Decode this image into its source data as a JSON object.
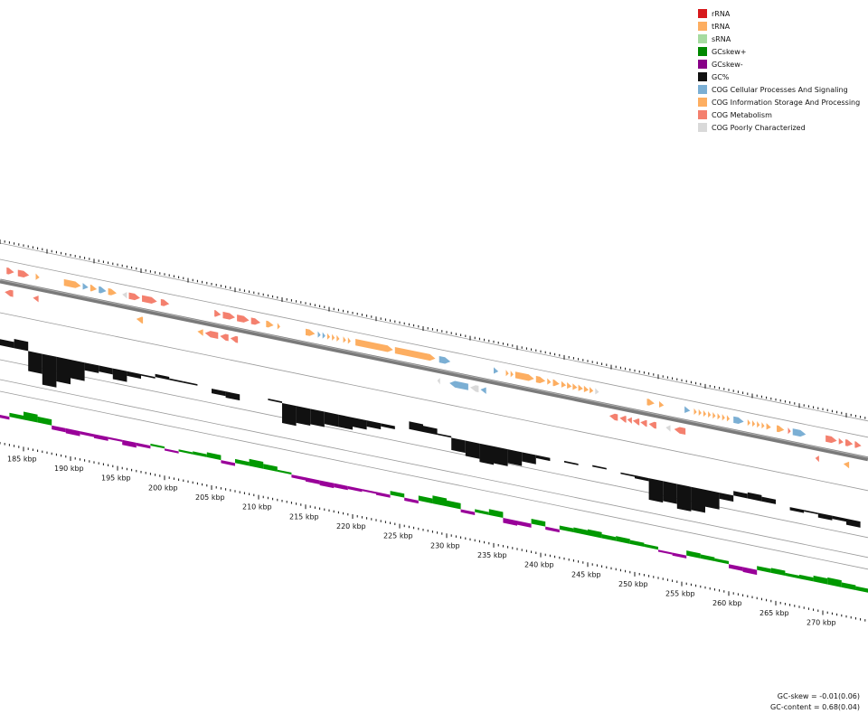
{
  "legend": [
    {
      "label": "rRNA",
      "color": "#d7191c"
    },
    {
      "label": "tRNA",
      "color": "#fdae61"
    },
    {
      "label": "sRNA",
      "color": "#a6dba0"
    },
    {
      "label": "GCskew+",
      "color": "#008800"
    },
    {
      "label": "GCskew-",
      "color": "#880088"
    },
    {
      "label": "GC%",
      "color": "#111111"
    },
    {
      "label": "COG Cellular Processes And Signaling",
      "color": "#7bafd4"
    },
    {
      "label": "COG Information Storage And Processing",
      "color": "#fdae61"
    },
    {
      "label": "COG Metabolism",
      "color": "#f4806e"
    },
    {
      "label": "COG Poorly Characterized",
      "color": "#d9d9d9"
    }
  ],
  "scale": {
    "labels": [
      "185 kbp",
      "190 kbp",
      "195 kbp",
      "200 kbp",
      "205 kbp",
      "210 kbp",
      "215 kbp",
      "220 kbp",
      "225 kbp",
      "230 kbp",
      "235 kbp",
      "240 kbp",
      "245 kbp",
      "250 kbp",
      "255 kbp",
      "260 kbp",
      "265 kbp",
      "270 kbp"
    ],
    "start_kbp": 185,
    "step_kbp": 5
  },
  "stats": {
    "gc_skew": "GC-skew = -0.01(0.06)",
    "gc_content": "GC-content = 0.68(0.04)"
  },
  "colors": {
    "backbone": "#7a7a7a",
    "ring_line": "#9a9a9a",
    "gc": "#111111",
    "skew_pos": "#009900",
    "skew_neg": "#990099",
    "cog_cell": "#7bafd4",
    "cog_info": "#fdae61",
    "cog_meta": "#f4806e",
    "cog_poor": "#d9d9d9"
  },
  "features_outer": [
    {
      "kbp": 183.2,
      "len": 0.8,
      "cat": "cog_meta",
      "dir": 1
    },
    {
      "kbp": 184.4,
      "len": 1.2,
      "cat": "cog_meta",
      "dir": 1
    },
    {
      "kbp": 186.3,
      "len": 0.4,
      "cat": "cog_info",
      "dir": 1
    },
    {
      "kbp": 189.3,
      "len": 1.8,
      "cat": "cog_info",
      "dir": 1
    },
    {
      "kbp": 191.3,
      "len": 0.6,
      "cat": "cog_cell",
      "dir": 1
    },
    {
      "kbp": 192.1,
      "len": 0.7,
      "cat": "cog_info",
      "dir": 1
    },
    {
      "kbp": 193.0,
      "len": 0.8,
      "cat": "cog_cell",
      "dir": 1
    },
    {
      "kbp": 194.0,
      "len": 0.9,
      "cat": "cog_info",
      "dir": 1
    },
    {
      "kbp": 195.5,
      "len": 0.5,
      "cat": "cog_poor",
      "dir": -1
    },
    {
      "kbp": 196.2,
      "len": 1.2,
      "cat": "cog_meta",
      "dir": 1
    },
    {
      "kbp": 197.6,
      "len": 1.6,
      "cat": "cog_meta",
      "dir": 1
    },
    {
      "kbp": 199.6,
      "len": 0.9,
      "cat": "cog_meta",
      "dir": 1
    },
    {
      "kbp": 205.3,
      "len": 0.7,
      "cat": "cog_meta",
      "dir": 1
    },
    {
      "kbp": 206.2,
      "len": 1.3,
      "cat": "cog_meta",
      "dir": 1
    },
    {
      "kbp": 207.7,
      "len": 1.3,
      "cat": "cog_meta",
      "dir": 1
    },
    {
      "kbp": 209.2,
      "len": 1.0,
      "cat": "cog_meta",
      "dir": 1
    },
    {
      "kbp": 210.8,
      "len": 0.8,
      "cat": "cog_info",
      "dir": 1
    },
    {
      "kbp": 212.0,
      "len": 0.3,
      "cat": "cog_info",
      "dir": 1
    },
    {
      "kbp": 215.0,
      "len": 1.0,
      "cat": "cog_info",
      "dir": 1
    },
    {
      "kbp": 216.3,
      "len": 0.3,
      "cat": "cog_cell",
      "dir": 1
    },
    {
      "kbp": 216.8,
      "len": 0.3,
      "cat": "cog_cell",
      "dir": 1
    },
    {
      "kbp": 217.3,
      "len": 0.3,
      "cat": "cog_info",
      "dir": 1
    },
    {
      "kbp": 217.8,
      "len": 0.3,
      "cat": "cog_info",
      "dir": 1
    },
    {
      "kbp": 218.3,
      "len": 0.3,
      "cat": "cog_info",
      "dir": 1
    },
    {
      "kbp": 219.0,
      "len": 0.3,
      "cat": "cog_info",
      "dir": 1
    },
    {
      "kbp": 219.5,
      "len": 0.3,
      "cat": "cog_info",
      "dir": 1
    },
    {
      "kbp": 220.3,
      "len": 4.0,
      "cat": "cog_info",
      "dir": 1
    },
    {
      "kbp": 224.5,
      "len": 4.3,
      "cat": "cog_info",
      "dir": 1
    },
    {
      "kbp": 229.2,
      "len": 1.2,
      "cat": "cog_cell",
      "dir": 1
    },
    {
      "kbp": 235.0,
      "len": 0.5,
      "cat": "cog_cell",
      "dir": 1
    },
    {
      "kbp": 236.3,
      "len": 0.3,
      "cat": "cog_info",
      "dir": 1
    },
    {
      "kbp": 236.8,
      "len": 0.3,
      "cat": "cog_info",
      "dir": 1
    },
    {
      "kbp": 237.3,
      "len": 2.0,
      "cat": "cog_info",
      "dir": 1
    },
    {
      "kbp": 239.5,
      "len": 1.0,
      "cat": "cog_info",
      "dir": 1
    },
    {
      "kbp": 240.7,
      "len": 0.4,
      "cat": "cog_info",
      "dir": 1
    },
    {
      "kbp": 241.3,
      "len": 0.7,
      "cat": "cog_info",
      "dir": 1
    },
    {
      "kbp": 242.2,
      "len": 0.5,
      "cat": "cog_info",
      "dir": 1
    },
    {
      "kbp": 242.8,
      "len": 0.5,
      "cat": "cog_info",
      "dir": 1
    },
    {
      "kbp": 243.4,
      "len": 0.5,
      "cat": "cog_info",
      "dir": 1
    },
    {
      "kbp": 244.0,
      "len": 0.5,
      "cat": "cog_info",
      "dir": 1
    },
    {
      "kbp": 244.6,
      "len": 0.5,
      "cat": "cog_info",
      "dir": 1
    },
    {
      "kbp": 245.2,
      "len": 0.4,
      "cat": "cog_info",
      "dir": 1
    },
    {
      "kbp": 245.8,
      "len": 0.4,
      "cat": "cog_poor",
      "dir": 1
    },
    {
      "kbp": 251.3,
      "len": 0.8,
      "cat": "cog_info",
      "dir": 1
    },
    {
      "kbp": 252.6,
      "len": 0.5,
      "cat": "cog_info",
      "dir": 1
    },
    {
      "kbp": 255.3,
      "len": 0.6,
      "cat": "cog_cell",
      "dir": 1
    },
    {
      "kbp": 256.3,
      "len": 0.3,
      "cat": "cog_info",
      "dir": 1
    },
    {
      "kbp": 256.8,
      "len": 0.3,
      "cat": "cog_info",
      "dir": 1
    },
    {
      "kbp": 257.3,
      "len": 0.3,
      "cat": "cog_info",
      "dir": 1
    },
    {
      "kbp": 257.8,
      "len": 0.3,
      "cat": "cog_info",
      "dir": 1
    },
    {
      "kbp": 258.3,
      "len": 0.3,
      "cat": "cog_info",
      "dir": 1
    },
    {
      "kbp": 258.8,
      "len": 0.3,
      "cat": "cog_info",
      "dir": 1
    },
    {
      "kbp": 259.3,
      "len": 0.3,
      "cat": "cog_info",
      "dir": 1
    },
    {
      "kbp": 259.8,
      "len": 0.3,
      "cat": "cog_info",
      "dir": 1
    },
    {
      "kbp": 260.5,
      "len": 1.1,
      "cat": "cog_cell",
      "dir": 1
    },
    {
      "kbp": 262.0,
      "len": 0.3,
      "cat": "cog_info",
      "dir": 1
    },
    {
      "kbp": 262.5,
      "len": 0.3,
      "cat": "cog_info",
      "dir": 1
    },
    {
      "kbp": 263.0,
      "len": 0.3,
      "cat": "cog_info",
      "dir": 1
    },
    {
      "kbp": 263.5,
      "len": 0.3,
      "cat": "cog_info",
      "dir": 1
    },
    {
      "kbp": 264.0,
      "len": 0.5,
      "cat": "cog_info",
      "dir": 1
    },
    {
      "kbp": 265.1,
      "len": 0.8,
      "cat": "cog_info",
      "dir": 1
    },
    {
      "kbp": 266.3,
      "len": 0.3,
      "cat": "cog_meta",
      "dir": 1
    },
    {
      "kbp": 266.8,
      "len": 1.4,
      "cat": "cog_cell",
      "dir": 1
    },
    {
      "kbp": 270.3,
      "len": 1.2,
      "cat": "cog_meta",
      "dir": 1
    },
    {
      "kbp": 271.7,
      "len": 0.5,
      "cat": "cog_meta",
      "dir": 1
    },
    {
      "kbp": 272.4,
      "len": 0.8,
      "cat": "cog_meta",
      "dir": 1
    },
    {
      "kbp": 273.4,
      "len": 0.7,
      "cat": "cog_meta",
      "dir": 1
    }
  ],
  "features_inner": [
    {
      "kbp": 183.0,
      "len": 0.9,
      "cat": "cog_meta",
      "dir": -1
    },
    {
      "kbp": 186.0,
      "len": 0.6,
      "cat": "cog_meta",
      "dir": -1
    },
    {
      "kbp": 197.0,
      "len": 0.7,
      "cat": "cog_info",
      "dir": -1
    },
    {
      "kbp": 203.5,
      "len": 0.6,
      "cat": "cog_info",
      "dir": -1
    },
    {
      "kbp": 204.3,
      "len": 1.4,
      "cat": "cog_meta",
      "dir": -1
    },
    {
      "kbp": 205.9,
      "len": 0.9,
      "cat": "cog_meta",
      "dir": -1
    },
    {
      "kbp": 207.0,
      "len": 0.8,
      "cat": "cog_meta",
      "dir": -1
    },
    {
      "kbp": 229.0,
      "len": 0.3,
      "cat": "cog_poor",
      "dir": -1
    },
    {
      "kbp": 230.3,
      "len": 2.0,
      "cat": "cog_cell",
      "dir": -1
    },
    {
      "kbp": 232.5,
      "len": 0.9,
      "cat": "cog_poor",
      "dir": -1
    },
    {
      "kbp": 233.6,
      "len": 0.6,
      "cat": "cog_cell",
      "dir": -1
    },
    {
      "kbp": 247.3,
      "len": 0.9,
      "cat": "cog_meta",
      "dir": -1
    },
    {
      "kbp": 248.4,
      "len": 0.7,
      "cat": "cog_meta",
      "dir": -1
    },
    {
      "kbp": 249.2,
      "len": 0.5,
      "cat": "cog_meta",
      "dir": -1
    },
    {
      "kbp": 249.8,
      "len": 0.7,
      "cat": "cog_meta",
      "dir": -1
    },
    {
      "kbp": 250.6,
      "len": 0.7,
      "cat": "cog_meta",
      "dir": -1
    },
    {
      "kbp": 251.5,
      "len": 0.8,
      "cat": "cog_meta",
      "dir": -1
    },
    {
      "kbp": 253.3,
      "len": 0.5,
      "cat": "cog_poor",
      "dir": -1
    },
    {
      "kbp": 254.2,
      "len": 1.2,
      "cat": "cog_meta",
      "dir": -1
    },
    {
      "kbp": 269.2,
      "len": 0.4,
      "cat": "cog_meta",
      "dir": -1
    },
    {
      "kbp": 272.2,
      "len": 0.6,
      "cat": "cog_info",
      "dir": -1
    }
  ],
  "gc_percent": [
    {
      "kbp": 182.0,
      "v": 0.72
    },
    {
      "kbp": 184.0,
      "v": 0.74
    },
    {
      "kbp": 185.5,
      "v": 0.55
    },
    {
      "kbp": 187.0,
      "v": 0.48
    },
    {
      "kbp": 188.5,
      "v": 0.52
    },
    {
      "kbp": 190.0,
      "v": 0.56
    },
    {
      "kbp": 191.5,
      "v": 0.63
    },
    {
      "kbp": 193.0,
      "v": 0.64
    },
    {
      "kbp": 194.5,
      "v": 0.61
    },
    {
      "kbp": 196.0,
      "v": 0.65
    },
    {
      "kbp": 197.5,
      "v": 0.67
    },
    {
      "kbp": 199.0,
      "v": 0.7
    },
    {
      "kbp": 200.5,
      "v": 0.69
    },
    {
      "kbp": 202.0,
      "v": 0.69
    },
    {
      "kbp": 203.5,
      "v": 0.68
    },
    {
      "kbp": 205.0,
      "v": 0.65
    },
    {
      "kbp": 206.5,
      "v": 0.64
    },
    {
      "kbp": 208.0,
      "v": 0.68
    },
    {
      "kbp": 209.5,
      "v": 0.68
    },
    {
      "kbp": 211.0,
      "v": 0.69
    },
    {
      "kbp": 212.5,
      "v": 0.55
    },
    {
      "kbp": 214.0,
      "v": 0.57
    },
    {
      "kbp": 215.5,
      "v": 0.58
    },
    {
      "kbp": 217.0,
      "v": 0.6
    },
    {
      "kbp": 218.5,
      "v": 0.6
    },
    {
      "kbp": 220.0,
      "v": 0.62
    },
    {
      "kbp": 221.5,
      "v": 0.64
    },
    {
      "kbp": 223.0,
      "v": 0.66
    },
    {
      "kbp": 224.5,
      "v": 0.68
    },
    {
      "kbp": 226.0,
      "v": 0.73
    },
    {
      "kbp": 227.5,
      "v": 0.72
    },
    {
      "kbp": 229.0,
      "v": 0.69
    },
    {
      "kbp": 230.5,
      "v": 0.6
    },
    {
      "kbp": 232.0,
      "v": 0.58
    },
    {
      "kbp": 233.5,
      "v": 0.56
    },
    {
      "kbp": 235.0,
      "v": 0.57
    },
    {
      "kbp": 236.5,
      "v": 0.59
    },
    {
      "kbp": 238.0,
      "v": 0.62
    },
    {
      "kbp": 239.5,
      "v": 0.66
    },
    {
      "kbp": 241.0,
      "v": 0.68
    },
    {
      "kbp": 242.5,
      "v": 0.67
    },
    {
      "kbp": 244.0,
      "v": 0.68
    },
    {
      "kbp": 245.5,
      "v": 0.69
    },
    {
      "kbp": 247.0,
      "v": 0.68
    },
    {
      "kbp": 248.5,
      "v": 0.67
    },
    {
      "kbp": 250.0,
      "v": 0.66
    },
    {
      "kbp": 251.5,
      "v": 0.54
    },
    {
      "kbp": 253.0,
      "v": 0.55
    },
    {
      "kbp": 254.5,
      "v": 0.52
    },
    {
      "kbp": 256.0,
      "v": 0.53
    },
    {
      "kbp": 257.5,
      "v": 0.57
    },
    {
      "kbp": 259.0,
      "v": 0.64
    },
    {
      "kbp": 260.5,
      "v": 0.71
    },
    {
      "kbp": 262.0,
      "v": 0.72
    },
    {
      "kbp": 263.5,
      "v": 0.71
    },
    {
      "kbp": 265.0,
      "v": 0.68
    },
    {
      "kbp": 266.5,
      "v": 0.66
    },
    {
      "kbp": 268.0,
      "v": 0.67
    },
    {
      "kbp": 269.5,
      "v": 0.65
    },
    {
      "kbp": 271.0,
      "v": 0.66
    },
    {
      "kbp": 272.5,
      "v": 0.64
    },
    {
      "kbp": 274.0,
      "v": 0.62
    }
  ],
  "gc_skew": [
    {
      "kbp": 182.0,
      "v": -0.03
    },
    {
      "kbp": 183.5,
      "v": 0.04
    },
    {
      "kbp": 185.0,
      "v": 0.08
    },
    {
      "kbp": 186.5,
      "v": 0.06
    },
    {
      "kbp": 188.0,
      "v": -0.04
    },
    {
      "kbp": 189.5,
      "v": -0.05
    },
    {
      "kbp": 191.0,
      "v": -0.03
    },
    {
      "kbp": 192.5,
      "v": -0.04
    },
    {
      "kbp": 194.0,
      "v": -0.02
    },
    {
      "kbp": 195.5,
      "v": -0.05
    },
    {
      "kbp": 197.0,
      "v": -0.03
    },
    {
      "kbp": 198.5,
      "v": 0.02
    },
    {
      "kbp": 200.0,
      "v": -0.02
    },
    {
      "kbp": 201.5,
      "v": 0.02
    },
    {
      "kbp": 203.0,
      "v": 0.03
    },
    {
      "kbp": 204.5,
      "v": 0.05
    },
    {
      "kbp": 206.0,
      "v": -0.03
    },
    {
      "kbp": 207.5,
      "v": 0.04
    },
    {
      "kbp": 209.0,
      "v": 0.07
    },
    {
      "kbp": 210.5,
      "v": 0.05
    },
    {
      "kbp": 212.0,
      "v": 0.02
    },
    {
      "kbp": 213.5,
      "v": -0.03
    },
    {
      "kbp": 215.0,
      "v": -0.04
    },
    {
      "kbp": 216.5,
      "v": -0.05
    },
    {
      "kbp": 218.0,
      "v": -0.04
    },
    {
      "kbp": 219.5,
      "v": -0.03
    },
    {
      "kbp": 221.0,
      "v": -0.02
    },
    {
      "kbp": 222.5,
      "v": -0.03
    },
    {
      "kbp": 224.0,
      "v": 0.04
    },
    {
      "kbp": 225.5,
      "v": -0.03
    },
    {
      "kbp": 227.0,
      "v": 0.05
    },
    {
      "kbp": 228.5,
      "v": 0.08
    },
    {
      "kbp": 230.0,
      "v": 0.06
    },
    {
      "kbp": 231.5,
      "v": -0.03
    },
    {
      "kbp": 233.0,
      "v": 0.03
    },
    {
      "kbp": 234.5,
      "v": 0.06
    },
    {
      "kbp": 236.0,
      "v": -0.05
    },
    {
      "kbp": 237.5,
      "v": -0.04
    },
    {
      "kbp": 239.0,
      "v": 0.05
    },
    {
      "kbp": 240.5,
      "v": -0.03
    },
    {
      "kbp": 242.0,
      "v": 0.04
    },
    {
      "kbp": 243.5,
      "v": 0.05
    },
    {
      "kbp": 245.0,
      "v": 0.06
    },
    {
      "kbp": 246.5,
      "v": 0.04
    },
    {
      "kbp": 248.0,
      "v": 0.05
    },
    {
      "kbp": 249.5,
      "v": 0.04
    },
    {
      "kbp": 251.0,
      "v": 0.03
    },
    {
      "kbp": 252.5,
      "v": -0.02
    },
    {
      "kbp": 254.0,
      "v": -0.03
    },
    {
      "kbp": 255.5,
      "v": 0.05
    },
    {
      "kbp": 257.0,
      "v": 0.04
    },
    {
      "kbp": 258.5,
      "v": 0.03
    },
    {
      "kbp": 260.0,
      "v": -0.04
    },
    {
      "kbp": 261.5,
      "v": -0.05
    },
    {
      "kbp": 263.0,
      "v": 0.04
    },
    {
      "kbp": 264.5,
      "v": 0.05
    },
    {
      "kbp": 266.0,
      "v": 0.03
    },
    {
      "kbp": 267.5,
      "v": 0.04
    },
    {
      "kbp": 269.0,
      "v": 0.06
    },
    {
      "kbp": 270.5,
      "v": 0.07
    },
    {
      "kbp": 272.0,
      "v": 0.05
    },
    {
      "kbp": 273.5,
      "v": 0.04
    },
    {
      "kbp": 275.0,
      "v": 0.03
    }
  ]
}
